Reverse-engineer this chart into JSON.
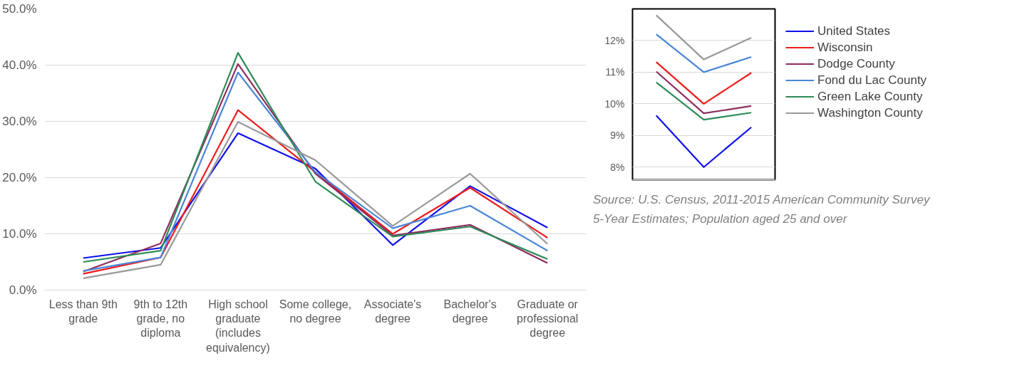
{
  "chart_data": [
    {
      "type": "line",
      "categories": [
        "Less than 9th grade",
        "9th to 12th grade, no diploma",
        "High school graduate (includes equivalency)",
        "Some college, no degree",
        "Associate's degree",
        "Bachelor's degree",
        "Graduate or professional degree"
      ],
      "series": [
        {
          "name": "United States",
          "color": "#1010ee",
          "values": [
            5.7,
            7.5,
            27.9,
            21.6,
            8.0,
            18.5,
            11.1
          ]
        },
        {
          "name": "Wisconsin",
          "color": "#ee1c1c",
          "values": [
            2.9,
            5.8,
            32.0,
            21.0,
            10.0,
            18.2,
            9.3
          ]
        },
        {
          "name": "Dodge County",
          "color": "#8e2d5e",
          "values": [
            3.3,
            8.3,
            40.2,
            20.7,
            9.7,
            11.6,
            4.8
          ]
        },
        {
          "name": "Fond du Lac County",
          "color": "#4a86d8",
          "values": [
            3.4,
            5.8,
            38.7,
            21.0,
            11.0,
            15.0,
            7.0
          ]
        },
        {
          "name": "Green Lake County",
          "color": "#2e8b57",
          "values": [
            5.0,
            7.0,
            42.2,
            19.3,
            9.5,
            11.3,
            5.5
          ]
        },
        {
          "name": "Washington County",
          "color": "#999999",
          "values": [
            2.1,
            4.5,
            29.9,
            23.1,
            11.4,
            20.7,
            8.2
          ]
        }
      ],
      "ylim": [
        0,
        50
      ],
      "yticks": [
        {
          "value": 0,
          "label": "0.0%"
        },
        {
          "value": 10,
          "label": "10.0%"
        },
        {
          "value": 20,
          "label": "20.0%"
        },
        {
          "value": 30,
          "label": "30.0%"
        },
        {
          "value": 40,
          "label": "40.0%"
        },
        {
          "value": 50,
          "label": "50.0%"
        }
      ],
      "grid": "y",
      "legend": "right",
      "marker": "none",
      "line_style": "solid",
      "annotations": [
        "Source: U.S. Census, 2011-2015 American Community Survey 5-Year Estimates; Population aged 25 and over"
      ]
    },
    {
      "type": "line",
      "categories": [
        null,
        null,
        null
      ],
      "series": [
        {
          "color": "#1010ee",
          "values": [
            9.63,
            8.0,
            9.26
          ]
        },
        {
          "color": "#ee1c1c",
          "values": [
            11.32,
            10.0,
            10.98
          ]
        },
        {
          "color": "#8e2d5e",
          "values": [
            11.02,
            9.7,
            9.93
          ]
        },
        {
          "color": "#4a86d8",
          "values": [
            12.2,
            11.0,
            11.48
          ]
        },
        {
          "color": "#2e8b57",
          "values": [
            10.68,
            9.5,
            9.72
          ]
        },
        {
          "color": "#999999",
          "values": [
            12.8,
            11.4,
            12.09
          ]
        }
      ],
      "ylim": [
        7.6,
        13.0
      ],
      "yticks": [
        {
          "value": 8,
          "label": "8%"
        },
        {
          "value": 9,
          "label": "9%"
        },
        {
          "value": 10,
          "label": "10%"
        },
        {
          "value": 11,
          "label": "11%"
        },
        {
          "value": 12,
          "label": "12%"
        }
      ],
      "grid": "y",
      "tick_labels": "y",
      "marker": "none",
      "line_style": "solid"
    }
  ]
}
